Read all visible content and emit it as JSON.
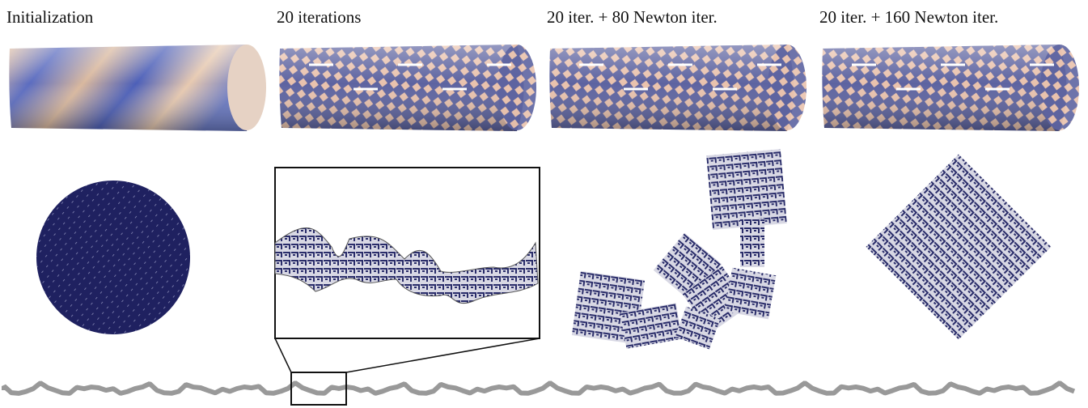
{
  "columns": [
    {
      "title": "Initialization"
    },
    {
      "title": "20 iterations"
    },
    {
      "title": "20 iter. + 80 Newton iter."
    },
    {
      "title": "20 iter. + 160 Newton iter."
    }
  ]
}
